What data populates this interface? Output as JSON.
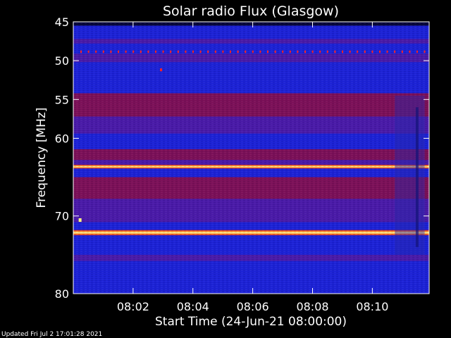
{
  "chart_data": {
    "type": "heatmap",
    "title": "Solar radio Flux (Glasgow)",
    "ylabel": "Frequency [MHz]",
    "xlabel": "Start Time (24-Jun-21 08:00:00)",
    "y_ticks": [
      {
        "value": 45,
        "label": "45"
      },
      {
        "value": 50,
        "label": "50"
      },
      {
        "value": 55,
        "label": "55"
      },
      {
        "value": 60,
        "label": "60"
      },
      {
        "value": 70,
        "label": "70"
      },
      {
        "value": 80,
        "label": "80"
      }
    ],
    "x_ticks": [
      {
        "value": 2,
        "label": "08:02"
      },
      {
        "value": 4,
        "label": "08:04"
      },
      {
        "value": 6,
        "label": "08:06"
      },
      {
        "value": 8,
        "label": "08:08"
      },
      {
        "value": 10,
        "label": "08:10"
      }
    ],
    "xlim": [
      0,
      11.9
    ],
    "ylim": [
      45,
      80
    ],
    "y_axis_inverted": true,
    "bands": [
      {
        "from": 45,
        "to": 45.5,
        "intensity": "deep-blue"
      },
      {
        "from": 45.5,
        "to": 47.2,
        "intensity": "blue"
      },
      {
        "from": 47.2,
        "to": 47.8,
        "intensity": "purple"
      },
      {
        "from": 47.8,
        "to": 48.6,
        "intensity": "blue"
      },
      {
        "from": 48.6,
        "to": 49.1,
        "intensity": "red-dotted"
      },
      {
        "from": 49.1,
        "to": 50.2,
        "intensity": "purple"
      },
      {
        "from": 50.2,
        "to": 54.2,
        "intensity": "blue"
      },
      {
        "from": 54.2,
        "to": 57.2,
        "intensity": "maroon"
      },
      {
        "from": 57.2,
        "to": 59.4,
        "intensity": "purple"
      },
      {
        "from": 59.4,
        "to": 61.4,
        "intensity": "blue"
      },
      {
        "from": 61.4,
        "to": 62.8,
        "intensity": "maroon"
      },
      {
        "from": 62.8,
        "to": 63.4,
        "intensity": "purple"
      },
      {
        "from": 63.4,
        "to": 63.9,
        "intensity": "bright-yellow"
      },
      {
        "from": 63.9,
        "to": 65.0,
        "intensity": "blue"
      },
      {
        "from": 65.0,
        "to": 67.8,
        "intensity": "maroon"
      },
      {
        "from": 67.8,
        "to": 70.8,
        "intensity": "purple"
      },
      {
        "from": 70.8,
        "to": 71.8,
        "intensity": "blue"
      },
      {
        "from": 71.8,
        "to": 72.5,
        "intensity": "bright-yellow"
      },
      {
        "from": 72.5,
        "to": 75.0,
        "intensity": "blue"
      },
      {
        "from": 75.0,
        "to": 75.8,
        "intensity": "purple"
      },
      {
        "from": 75.8,
        "to": 80.0,
        "intensity": "blue"
      }
    ],
    "colors": {
      "deep-blue": "#06063a",
      "blue": "#1c22d6",
      "purple": "#4a1aa8",
      "maroon": "#7c1058",
      "red-dotted": "#ff2020",
      "bright-yellow": "#ffff40",
      "axis": "#ffffff",
      "background": "#000000"
    },
    "grid": false
  },
  "footer": {
    "updated_text": "Updated Fri Jul  2 17:01:28 2021"
  }
}
